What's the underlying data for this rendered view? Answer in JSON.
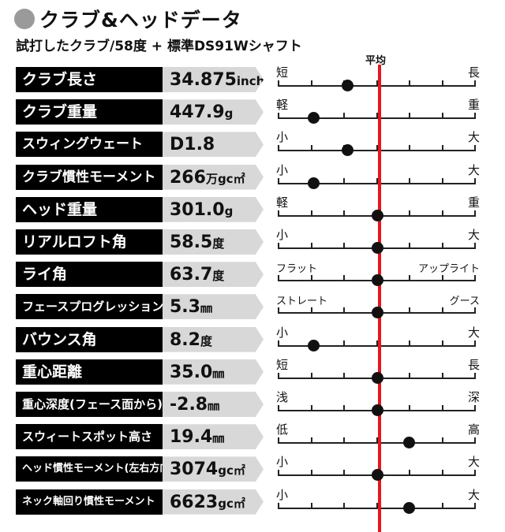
{
  "header": {
    "title": "クラブ&ヘッドデータ",
    "subtitle": "試打したクラブ/58度 + 標準DS91Wシャフト",
    "average_label": "平均"
  },
  "colors": {
    "average_line": "#e8141e",
    "label_bg": "#000000",
    "value_bg": "#d8d8d8"
  },
  "rows": [
    {
      "label": "クラブ長さ",
      "value": "34.875",
      "unit": "inch",
      "left": "短",
      "right": "長",
      "position": 0.35
    },
    {
      "label": "クラブ重量",
      "value": "447.9",
      "unit": "g",
      "left": "軽",
      "right": "重",
      "position": 0.18
    },
    {
      "label": "スウィングウェート",
      "value": "D1.8",
      "unit": "",
      "left": "小",
      "right": "大",
      "position": 0.35
    },
    {
      "label": "クラブ慣性モーメント",
      "value": "266",
      "unit": "万gc㎡",
      "left": "小",
      "right": "大",
      "position": 0.18
    },
    {
      "label": "ヘッド重量",
      "value": "301.0",
      "unit": "g",
      "left": "軽",
      "right": "重",
      "position": 0.5
    },
    {
      "label": "リアルロフト角",
      "value": "58.5",
      "unit": "度",
      "left": "小",
      "right": "大",
      "position": 0.5
    },
    {
      "label": "ライ角",
      "value": "63.7",
      "unit": "度",
      "left": "フラット",
      "right": "アップライト",
      "position": 0.5
    },
    {
      "label": "フェースプログレッション",
      "value": "5.3",
      "unit": "㎜",
      "left": "ストレート",
      "right": "グース",
      "position": 0.5
    },
    {
      "label": "バウンス角",
      "value": "8.2",
      "unit": "度",
      "left": "小",
      "right": "大",
      "position": 0.18
    },
    {
      "label": "重心距離",
      "value": "35.0",
      "unit": "㎜",
      "left": "短",
      "right": "長",
      "position": 0.5
    },
    {
      "label": "重心深度(フェース面から)",
      "value": "-2.8",
      "unit": "㎜",
      "left": "浅",
      "right": "深",
      "position": 0.5
    },
    {
      "label": "スウィートスポット高さ",
      "value": "19.4",
      "unit": "㎜",
      "left": "低",
      "right": "高",
      "position": 0.66
    },
    {
      "label": "ヘッド慣性モーメント(左右方向)",
      "value": "3074",
      "unit": "gc㎡",
      "left": "小",
      "right": "大",
      "position": 0.5
    },
    {
      "label": "ネック軸回り慣性モーメント",
      "value": "6623",
      "unit": "gc㎡",
      "left": "小",
      "right": "大",
      "position": 0.66
    }
  ]
}
